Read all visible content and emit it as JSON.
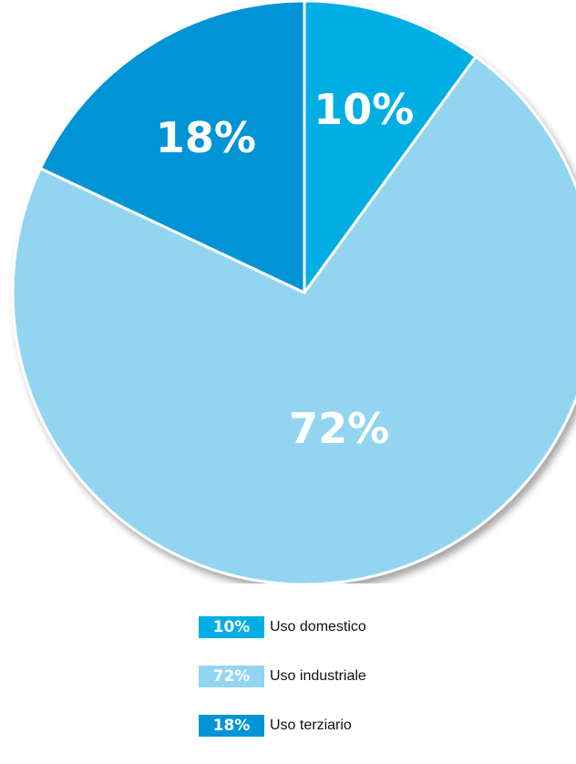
{
  "chart_data": {
    "type": "pie",
    "title": "",
    "series": [
      {
        "label": "10%",
        "value": 10,
        "name": "Uso domestico",
        "color": "#00aee4"
      },
      {
        "label": "72%",
        "value": 72,
        "name": "Uso industriale",
        "color": "#93d5f1"
      },
      {
        "label": "18%",
        "value": 18,
        "name": "Uso terziario",
        "color": "#0094d6"
      }
    ],
    "legend_position": "bottom-center"
  }
}
